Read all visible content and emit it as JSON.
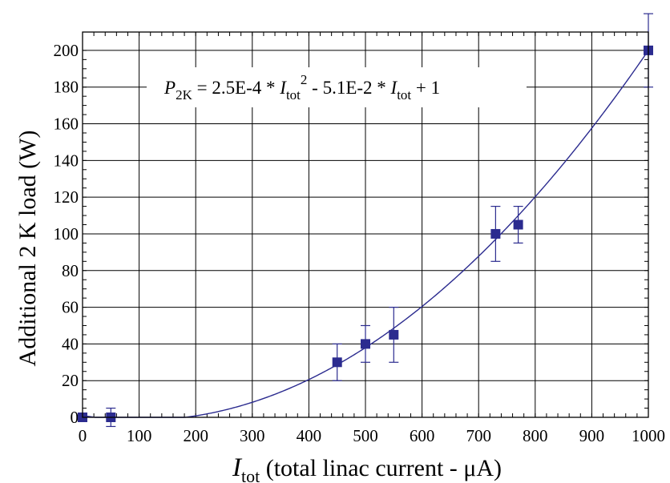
{
  "chart_data": {
    "type": "scatter",
    "xlabel_italic": "I",
    "xlabel_sub": "tot",
    "xlabel_rest": " (total linac current - μA)",
    "ylabel": "Additional 2 K load (W)",
    "xlim": [
      0,
      1000
    ],
    "ylim": [
      0,
      210
    ],
    "xticks": [
      0,
      100,
      200,
      300,
      400,
      500,
      600,
      700,
      800,
      900,
      1000
    ],
    "yticks": [
      0,
      20,
      40,
      60,
      80,
      100,
      120,
      140,
      160,
      180,
      200
    ],
    "grid": true,
    "colors": {
      "data": "#2b2b8f",
      "axis": "#000000",
      "grid": "#000000"
    },
    "series": [
      {
        "x": [
          0,
          50,
          450,
          500,
          550,
          730,
          770,
          1000
        ],
        "y": [
          0,
          0,
          30,
          40,
          45,
          100,
          105,
          200
        ],
        "y_err": [
          0,
          5,
          10,
          10,
          15,
          15,
          10,
          20
        ]
      }
    ],
    "fit": {
      "coefficients": [
        0.00025,
        -0.051,
        1
      ],
      "clip_min": 0
    },
    "annotation": {
      "P": "P",
      "P_sub": "2K",
      "t1": " = 2.5E-4 * ",
      "I1": "I",
      "I1_sub": "tot",
      "I1_sup": "2",
      "t2": " - 5.1E-2 * ",
      "I2": "I",
      "I2_sub": "tot",
      "t3": " + 1"
    }
  }
}
